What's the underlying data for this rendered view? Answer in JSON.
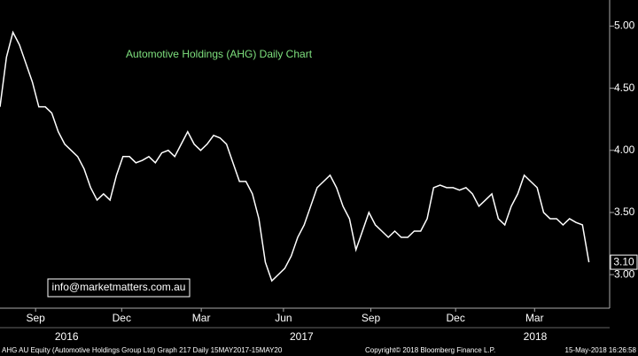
{
  "chart_data": {
    "type": "line",
    "title": "Automotive Holdings (AHG) Daily Chart",
    "annotation": "info@marketmatters.com.au",
    "footer_left": "AHG AU Equity (Automotive Holdings Group Ltd) Graph 217  Daily 15MAY2017-15MAY20",
    "footer_mid": "Copyright© 2018 Bloomberg Finance L.P.",
    "footer_right": "15-May-2018 16:26:58",
    "color": "#ffffff",
    "values": [
      4.35,
      4.75,
      4.95,
      4.85,
      4.7,
      4.55,
      4.35,
      4.35,
      4.3,
      4.15,
      4.05,
      4.0,
      3.95,
      3.85,
      3.7,
      3.6,
      3.65,
      3.6,
      3.8,
      3.95,
      3.95,
      3.9,
      3.92,
      3.95,
      3.9,
      3.98,
      4.0,
      3.95,
      4.05,
      4.15,
      4.05,
      4.0,
      4.05,
      4.12,
      4.1,
      4.05,
      3.9,
      3.75,
      3.75,
      3.65,
      3.45,
      3.1,
      2.95,
      3.0,
      3.05,
      3.15,
      3.3,
      3.4,
      3.55,
      3.7,
      3.75,
      3.8,
      3.7,
      3.55,
      3.45,
      3.2,
      3.35,
      3.5,
      3.4,
      3.35,
      3.3,
      3.35,
      3.3,
      3.3,
      3.35,
      3.35,
      3.45,
      3.7,
      3.72,
      3.7,
      3.7,
      3.68,
      3.7,
      3.65,
      3.55,
      3.6,
      3.65,
      3.45,
      3.4,
      3.55,
      3.65,
      3.8,
      3.75,
      3.7,
      3.5,
      3.45,
      3.45,
      3.4,
      3.45,
      3.42,
      3.4,
      3.1
    ],
    "last_label": "3.10",
    "xlim": [
      0,
      94.2
    ],
    "xticks": [
      {
        "value": 5.5,
        "label": "Sep"
      },
      {
        "value": 18.8,
        "label": "Dec"
      },
      {
        "value": 31.1,
        "label": "Mar"
      },
      {
        "value": 43.8,
        "label": "Jun"
      },
      {
        "value": 57.3,
        "label": "Sep"
      },
      {
        "value": 70.4,
        "label": "Dec"
      },
      {
        "value": 82.6,
        "label": "Mar"
      }
    ],
    "year_ticks": [
      {
        "value": 10.3,
        "label": "2016"
      },
      {
        "value": 46.6,
        "label": "2017"
      },
      {
        "value": 82.7,
        "label": "2018"
      }
    ],
    "ylim": [
      2.73,
      5.21
    ],
    "yticks": [
      {
        "value": 3,
        "label": "3.00"
      },
      {
        "value": 3.5,
        "label": "3.50"
      },
      {
        "value": 4,
        "label": "4.00"
      },
      {
        "value": 4.5,
        "label": "4.50"
      },
      {
        "value": 5,
        "label": "5.00"
      }
    ]
  }
}
